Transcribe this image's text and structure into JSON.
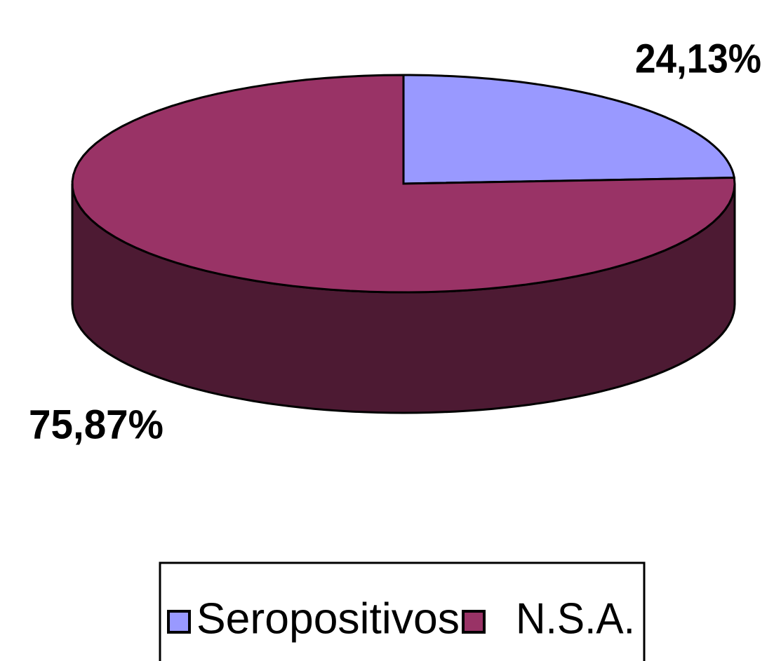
{
  "chart_data": {
    "type": "pie",
    "categories": [
      "Seropositivos",
      "N.S.A."
    ],
    "values": [
      24.13,
      75.87
    ],
    "value_labels": [
      "24,13%",
      "75,87%"
    ],
    "colors": [
      "#9999ff",
      "#993366"
    ],
    "legend": "bottom"
  }
}
